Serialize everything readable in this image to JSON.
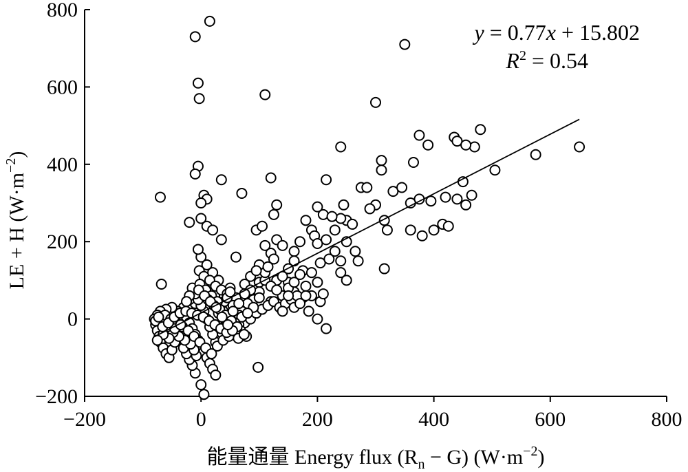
{
  "chart_data": {
    "type": "scatter",
    "title": "",
    "xlabel_prefix": "能量通量 Energy flux (R",
    "xlabel_sub": "n",
    "xlabel_mid": " − G) (W·m",
    "xlabel_sup": "−2",
    "xlabel_end": ")",
    "ylabel_main": "LE + H (W·m",
    "ylabel_sup": "−2",
    "ylabel_end": ")",
    "xlim": [
      -200,
      800
    ],
    "ylim": [
      -200,
      800
    ],
    "xticks": [
      -200,
      0,
      200,
      400,
      600,
      800
    ],
    "yticks": [
      -200,
      0,
      200,
      400,
      600,
      800
    ],
    "xtick_labels": [
      "−200",
      "0",
      "200",
      "400",
      "600",
      "800"
    ],
    "ytick_labels": [
      "−200",
      "0",
      "200",
      "400",
      "600",
      "800"
    ],
    "equation": {
      "y_var": "y",
      "eq_rest": " = 0.77",
      "x_var": "x",
      "eq_tail": " + 15.802",
      "r_var": "R",
      "r_sup": "2",
      "r_tail": " = 0.54"
    },
    "fit": {
      "slope": 0.77,
      "intercept": 15.802,
      "x_range": [
        -80,
        650
      ]
    },
    "grid": false,
    "legend": "none",
    "points": [
      [
        15,
        770
      ],
      [
        -10,
        730
      ],
      [
        350,
        710
      ],
      [
        -5,
        610
      ],
      [
        -3,
        570
      ],
      [
        110,
        580
      ],
      [
        300,
        560
      ],
      [
        480,
        490
      ],
      [
        375,
        475
      ],
      [
        435,
        470
      ],
      [
        440,
        460
      ],
      [
        470,
        445
      ],
      [
        455,
        450
      ],
      [
        650,
        445
      ],
      [
        575,
        425
      ],
      [
        240,
        445
      ],
      [
        390,
        450
      ],
      [
        310,
        410
      ],
      [
        365,
        405
      ],
      [
        505,
        385
      ],
      [
        -5,
        395
      ],
      [
        -10,
        375
      ],
      [
        35,
        360
      ],
      [
        120,
        365
      ],
      [
        215,
        360
      ],
      [
        450,
        355
      ],
      [
        310,
        385
      ],
      [
        275,
        340
      ],
      [
        285,
        340
      ],
      [
        330,
        330
      ],
      [
        345,
        340
      ],
      [
        375,
        310
      ],
      [
        395,
        305
      ],
      [
        420,
        315
      ],
      [
        440,
        310
      ],
      [
        465,
        320
      ],
      [
        455,
        295
      ],
      [
        70,
        325
      ],
      [
        -70,
        315
      ],
      [
        5,
        320
      ],
      [
        10,
        310
      ],
      [
        0,
        300
      ],
      [
        130,
        295
      ],
      [
        245,
        295
      ],
      [
        300,
        295
      ],
      [
        290,
        285
      ],
      [
        360,
        300
      ],
      [
        250,
        255
      ],
      [
        260,
        245
      ],
      [
        240,
        260
      ],
      [
        315,
        255
      ],
      [
        320,
        230
      ],
      [
        360,
        230
      ],
      [
        380,
        215
      ],
      [
        400,
        230
      ],
      [
        415,
        245
      ],
      [
        425,
        240
      ],
      [
        -20,
        250
      ],
      [
        0,
        260
      ],
      [
        10,
        240
      ],
      [
        20,
        230
      ],
      [
        95,
        230
      ],
      [
        105,
        240
      ],
      [
        125,
        270
      ],
      [
        180,
        255
      ],
      [
        200,
        290
      ],
      [
        210,
        270
      ],
      [
        225,
        265
      ],
      [
        190,
        230
      ],
      [
        230,
        230
      ],
      [
        195,
        215
      ],
      [
        130,
        205
      ],
      [
        35,
        205
      ],
      [
        60,
        160
      ],
      [
        110,
        190
      ],
      [
        140,
        190
      ],
      [
        160,
        175
      ],
      [
        170,
        200
      ],
      [
        200,
        195
      ],
      [
        215,
        205
      ],
      [
        250,
        200
      ],
      [
        265,
        175
      ],
      [
        230,
        175
      ],
      [
        160,
        150
      ],
      [
        150,
        130
      ],
      [
        175,
        125
      ],
      [
        190,
        120
      ],
      [
        205,
        145
      ],
      [
        220,
        155
      ],
      [
        240,
        120
      ],
      [
        250,
        100
      ],
      [
        120,
        170
      ],
      [
        100,
        140
      ],
      [
        85,
        110
      ],
      [
        75,
        90
      ],
      [
        100,
        95
      ],
      [
        130,
        100
      ],
      [
        150,
        95
      ],
      [
        160,
        70
      ],
      [
        175,
        55
      ],
      [
        200,
        95
      ],
      [
        205,
        45
      ],
      [
        210,
        65
      ],
      [
        190,
        60
      ],
      [
        185,
        20
      ],
      [
        200,
        0
      ],
      [
        215,
        -25
      ],
      [
        315,
        130
      ],
      [
        270,
        150
      ],
      [
        240,
        150
      ],
      [
        140,
        60
      ],
      [
        120,
        45
      ],
      [
        100,
        70
      ],
      [
        90,
        50
      ],
      [
        80,
        40
      ],
      [
        70,
        20
      ],
      [
        60,
        55
      ],
      [
        50,
        80
      ],
      [
        40,
        60
      ],
      [
        30,
        100
      ],
      [
        20,
        120
      ],
      [
        10,
        140
      ],
      [
        0,
        160
      ],
      [
        -5,
        180
      ],
      [
        -3,
        125
      ],
      [
        5,
        110
      ],
      [
        15,
        100
      ],
      [
        25,
        85
      ],
      [
        35,
        75
      ],
      [
        45,
        65
      ],
      [
        55,
        35
      ],
      [
        65,
        10
      ],
      [
        75,
        -10
      ],
      [
        85,
        0
      ],
      [
        95,
        15
      ],
      [
        105,
        25
      ],
      [
        115,
        35
      ],
      [
        125,
        45
      ],
      [
        135,
        30
      ],
      [
        145,
        40
      ],
      [
        155,
        50
      ],
      [
        165,
        60
      ],
      [
        -10,
        40
      ],
      [
        -20,
        50
      ],
      [
        -30,
        30
      ],
      [
        -40,
        20
      ],
      [
        -50,
        30
      ],
      [
        -60,
        25
      ],
      [
        -70,
        20
      ],
      [
        -75,
        10
      ],
      [
        -80,
        0
      ],
      [
        -78,
        -15
      ],
      [
        -75,
        -30
      ],
      [
        -72,
        -45
      ],
      [
        -70,
        -60
      ],
      [
        -65,
        -75
      ],
      [
        -60,
        -90
      ],
      [
        -55,
        -100
      ],
      [
        -50,
        -80
      ],
      [
        -45,
        -60
      ],
      [
        -40,
        -40
      ],
      [
        -35,
        -20
      ],
      [
        -30,
        -5
      ],
      [
        -25,
        5
      ],
      [
        -20,
        -10
      ],
      [
        -15,
        -25
      ],
      [
        -10,
        -40
      ],
      [
        -5,
        -55
      ],
      [
        0,
        -70
      ],
      [
        5,
        -85
      ],
      [
        10,
        -100
      ],
      [
        15,
        -115
      ],
      [
        20,
        -130
      ],
      [
        25,
        -145
      ],
      [
        0,
        -170
      ],
      [
        5,
        -195
      ],
      [
        -10,
        -140
      ],
      [
        -15,
        -120
      ],
      [
        -20,
        -105
      ],
      [
        -25,
        -90
      ],
      [
        -30,
        -75
      ],
      [
        30,
        -50
      ],
      [
        35,
        -35
      ],
      [
        40,
        -20
      ],
      [
        45,
        -5
      ],
      [
        50,
        10
      ],
      [
        55,
        -40
      ],
      [
        60,
        -25
      ],
      [
        65,
        -15
      ],
      [
        70,
        5
      ],
      [
        25,
        -60
      ],
      [
        20,
        -40
      ],
      [
        15,
        -20
      ],
      [
        10,
        0
      ],
      [
        5,
        20
      ],
      [
        0,
        35
      ],
      [
        -5,
        50
      ],
      [
        -10,
        65
      ],
      [
        -15,
        80
      ],
      [
        -20,
        60
      ],
      [
        -25,
        45
      ],
      [
        30,
        15
      ],
      [
        35,
        30
      ],
      [
        40,
        45
      ],
      [
        45,
        55
      ],
      [
        50,
        70
      ],
      [
        -68,
        90
      ],
      [
        -2,
        90
      ],
      [
        8,
        75
      ],
      [
        18,
        60
      ],
      [
        28,
        45
      ],
      [
        38,
        20
      ],
      [
        48,
        5
      ],
      [
        58,
        -10
      ],
      [
        68,
        -30
      ],
      [
        78,
        -45
      ],
      [
        98,
        -125
      ],
      [
        -8,
        -95
      ],
      [
        -12,
        -80
      ],
      [
        -18,
        -65
      ],
      [
        -28,
        -55
      ],
      [
        -38,
        -45
      ],
      [
        -48,
        -35
      ],
      [
        -58,
        -20
      ],
      [
        -68,
        -5
      ],
      [
        -62,
        10
      ],
      [
        -52,
        0
      ],
      [
        -42,
        -10
      ],
      [
        -32,
        -20
      ],
      [
        -22,
        -30
      ],
      [
        -12,
        -45
      ],
      [
        -2,
        -60
      ],
      [
        8,
        -75
      ],
      [
        18,
        -90
      ],
      [
        28,
        -70
      ],
      [
        38,
        -55
      ],
      [
        48,
        -45
      ],
      [
        12,
        50
      ],
      [
        22,
        35
      ],
      [
        32,
        25
      ],
      [
        42,
        10
      ],
      [
        52,
        -5
      ],
      [
        62,
        -20
      ],
      [
        110,
        100
      ],
      [
        120,
        85
      ],
      [
        100,
        55
      ],
      [
        90,
        30
      ],
      [
        80,
        15
      ],
      [
        130,
        75
      ],
      [
        140,
        110
      ],
      [
        150,
        80
      ],
      [
        160,
        95
      ],
      [
        170,
        115
      ],
      [
        180,
        85
      ],
      [
        110,
        120
      ],
      [
        125,
        155
      ],
      [
        115,
        135
      ],
      [
        95,
        125
      ],
      [
        85,
        75
      ],
      [
        75,
        65
      ],
      [
        65,
        40
      ],
      [
        55,
        20
      ],
      [
        -45,
        -25
      ],
      [
        -35,
        -15
      ],
      [
        -55,
        -50
      ],
      [
        -65,
        -40
      ],
      [
        -75,
        -55
      ],
      [
        -78,
        -5
      ],
      [
        -73,
        5
      ],
      [
        -66,
        -20
      ],
      [
        -56,
        -10
      ],
      [
        -46,
        5
      ],
      [
        -36,
        15
      ],
      [
        -26,
        20
      ],
      [
        -16,
        15
      ],
      [
        -6,
        10
      ],
      [
        4,
        5
      ],
      [
        14,
        -5
      ],
      [
        24,
        -15
      ],
      [
        34,
        -25
      ],
      [
        44,
        -35
      ],
      [
        54,
        -30
      ],
      [
        64,
        -50
      ],
      [
        74,
        -40
      ],
      [
        -4,
        75
      ],
      [
        6,
        60
      ],
      [
        16,
        45
      ],
      [
        26,
        30
      ],
      [
        36,
        5
      ],
      [
        46,
        -15
      ],
      [
        140,
        20
      ],
      [
        160,
        30
      ],
      [
        170,
        40
      ],
      [
        180,
        60
      ],
      [
        150,
        60
      ]
    ]
  }
}
